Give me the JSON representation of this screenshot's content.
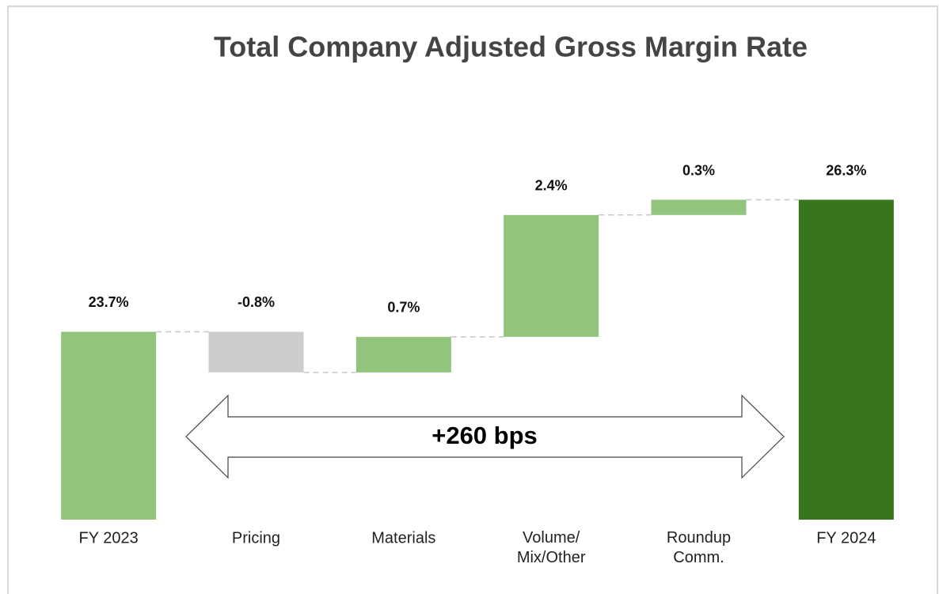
{
  "chart_data": {
    "type": "waterfall",
    "title": "Total Company Adjusted Gross Margin Rate",
    "categories": [
      "FY 2023",
      "Pricing",
      "Materials",
      "Volume/\nMix/Other",
      "Roundup\nComm.",
      "FY 2024"
    ],
    "values": [
      23.7,
      -0.8,
      0.7,
      2.4,
      0.3,
      26.3
    ],
    "value_labels": [
      "23.7%",
      "-0.8%",
      "0.7%",
      "2.4%",
      "0.3%",
      "26.3%"
    ],
    "measure": [
      "total",
      "relative",
      "relative",
      "relative",
      "relative",
      "total"
    ],
    "colors": [
      "#93c47d",
      "#cccccc",
      "#93c47d",
      "#93c47d",
      "#93c47d",
      "#38761d"
    ],
    "annotation": "+260 bps",
    "ylim": [
      20,
      28
    ]
  }
}
